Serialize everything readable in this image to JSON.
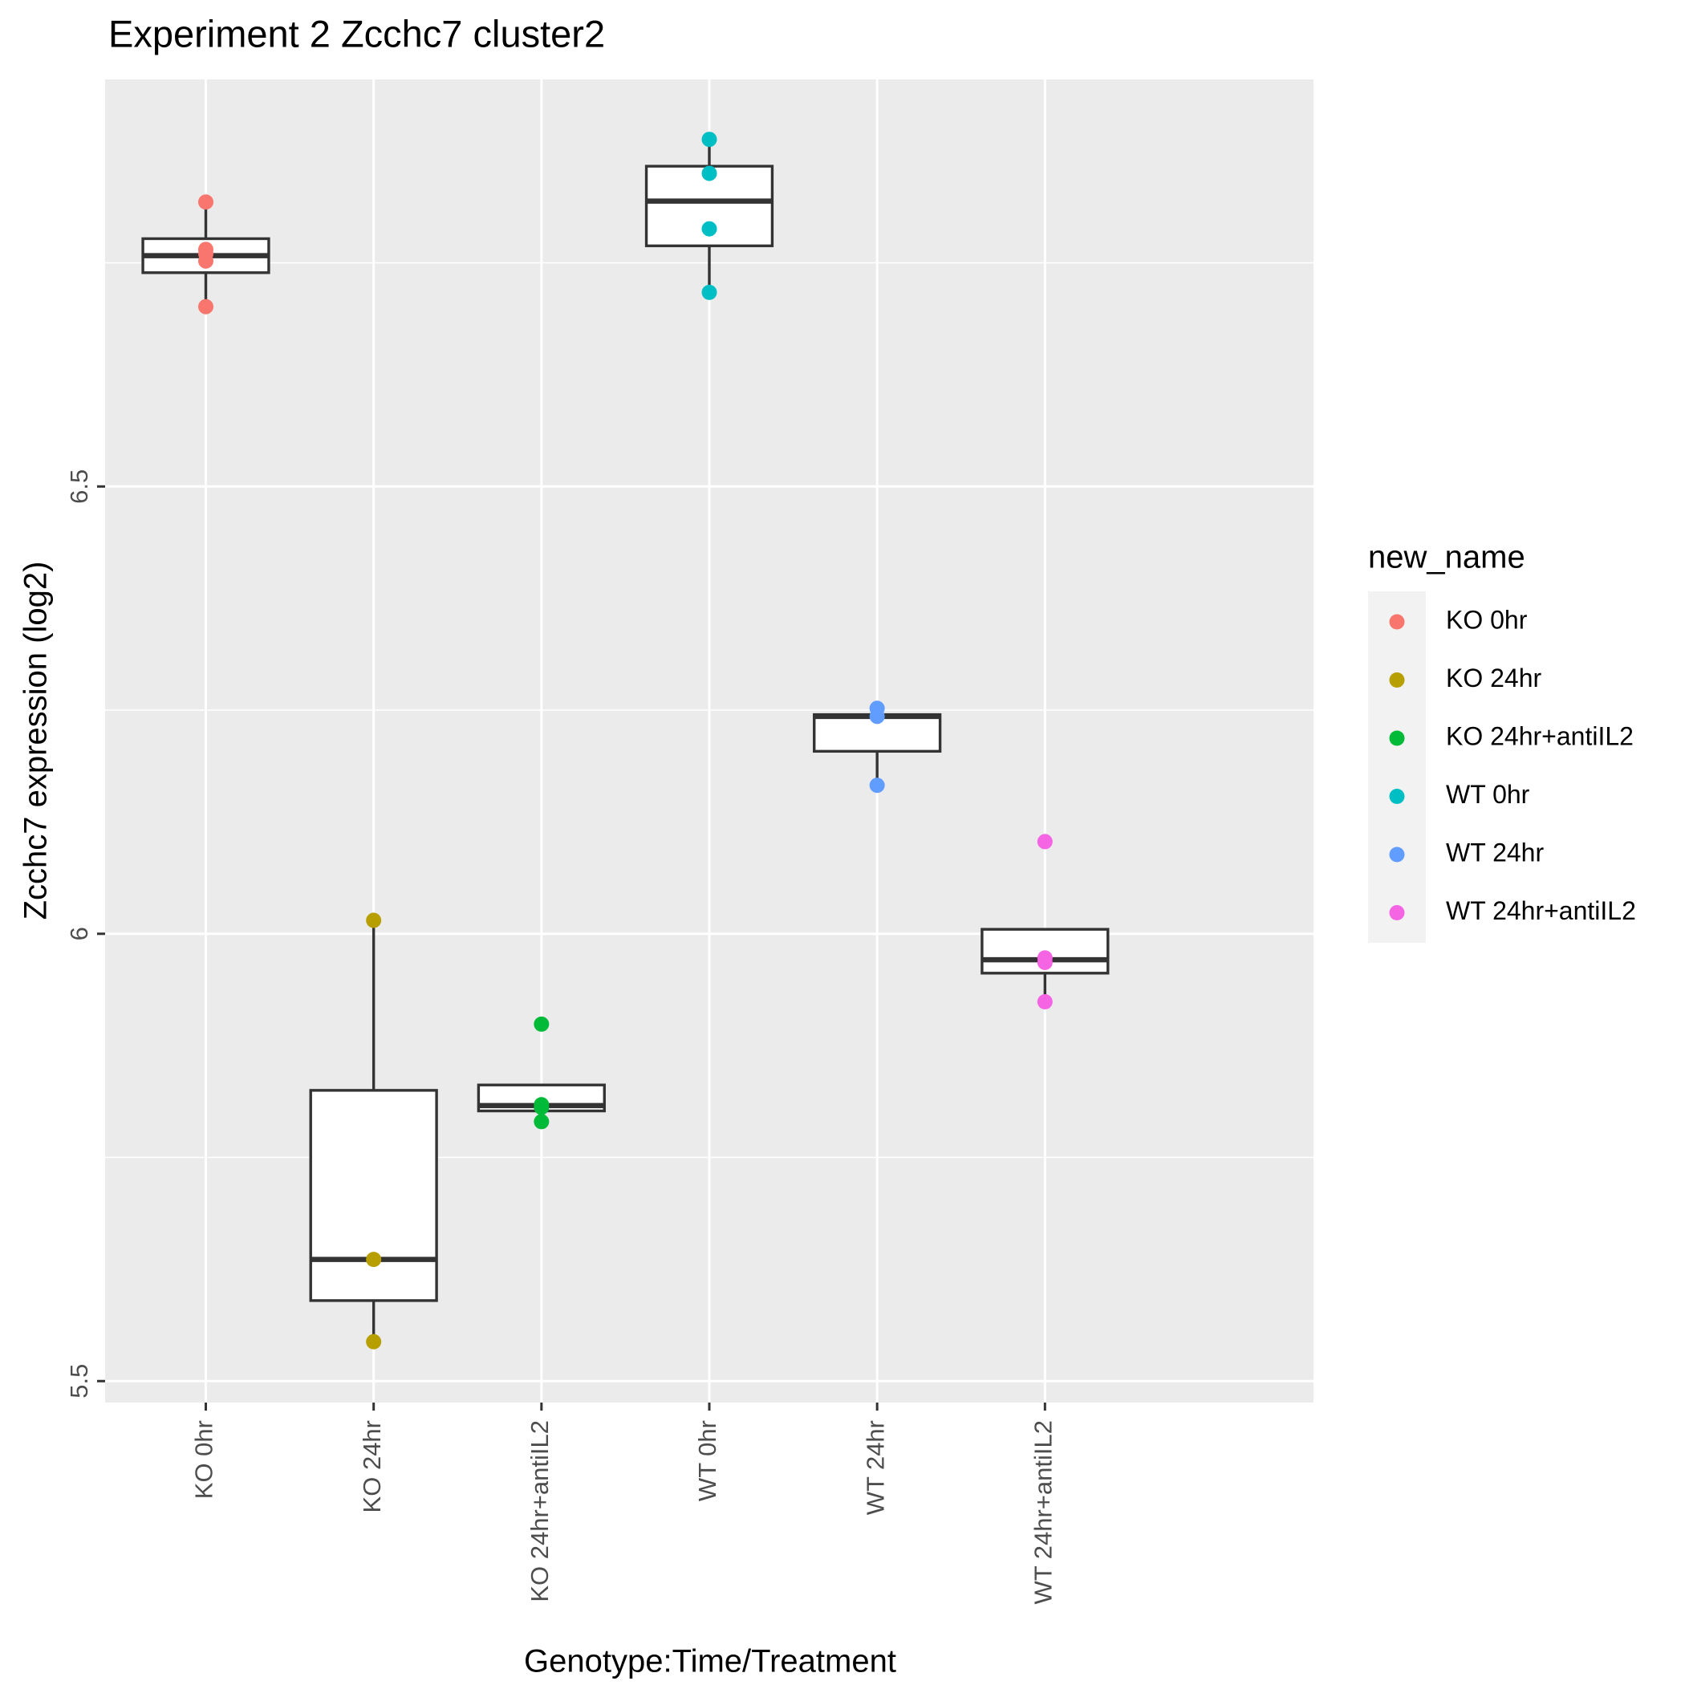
{
  "chart_data": {
    "type": "box",
    "title": "Experiment 2 Zcchc7 cluster2",
    "x_label": "Genotype:Time/Treatment",
    "y_label": "Zcchc7 expression (log2)",
    "legend_title": "new_name",
    "categories": [
      "KO 0hr",
      "KO 24hr",
      "KO 24hr+antiIL2",
      "WT 0hr",
      "WT 24hr",
      "WT 24hr+antiIL2"
    ],
    "boxes": [
      {
        "low": 6.701,
        "q1": 6.739,
        "median": 6.758,
        "q3": 6.777,
        "high": 6.818
      },
      {
        "low": 5.544,
        "q1": 5.59,
        "median": 5.636,
        "q3": 5.825,
        "high": 6.015
      },
      {
        "low": 5.79,
        "q1": 5.802,
        "median": 5.808,
        "q3": 5.831,
        "high": 5.831
      },
      {
        "low": 6.717,
        "q1": 6.769,
        "median": 6.819,
        "q3": 6.858,
        "high": 6.888
      },
      {
        "low": 6.166,
        "q1": 6.204,
        "median": 6.243,
        "q3": 6.245,
        "high": 6.252
      },
      {
        "low": 5.924,
        "q1": 5.956,
        "median": 5.971,
        "q3": 6.005,
        "high": 6.005
      }
    ],
    "series": [
      {
        "name": "KO 0hr",
        "color": "#F8766D",
        "values": [
          6.818,
          6.765,
          6.76,
          6.752,
          6.701
        ]
      },
      {
        "name": "KO 24hr",
        "color": "#B79F00",
        "values": [
          6.015,
          5.636,
          5.544
        ]
      },
      {
        "name": "KO 24hr+antiIL2",
        "color": "#00BA38",
        "values": [
          5.899,
          5.809,
          5.806,
          5.79
        ]
      },
      {
        "name": "WT 0hr",
        "color": "#00BFC4",
        "values": [
          6.888,
          6.85,
          6.788,
          6.717
        ]
      },
      {
        "name": "WT 24hr",
        "color": "#619CFF",
        "values": [
          6.252,
          6.243,
          6.166
        ]
      },
      {
        "name": "WT 24hr+antiIL2",
        "color": "#F564E3",
        "values": [
          6.103,
          5.973,
          5.968,
          5.924
        ]
      }
    ],
    "ylim": [
      5.476,
      6.955
    ],
    "yticks": [
      5.5,
      6.0,
      6.5
    ],
    "minor_yticks": [
      5.75,
      6.25,
      6.75
    ],
    "grid": true
  }
}
